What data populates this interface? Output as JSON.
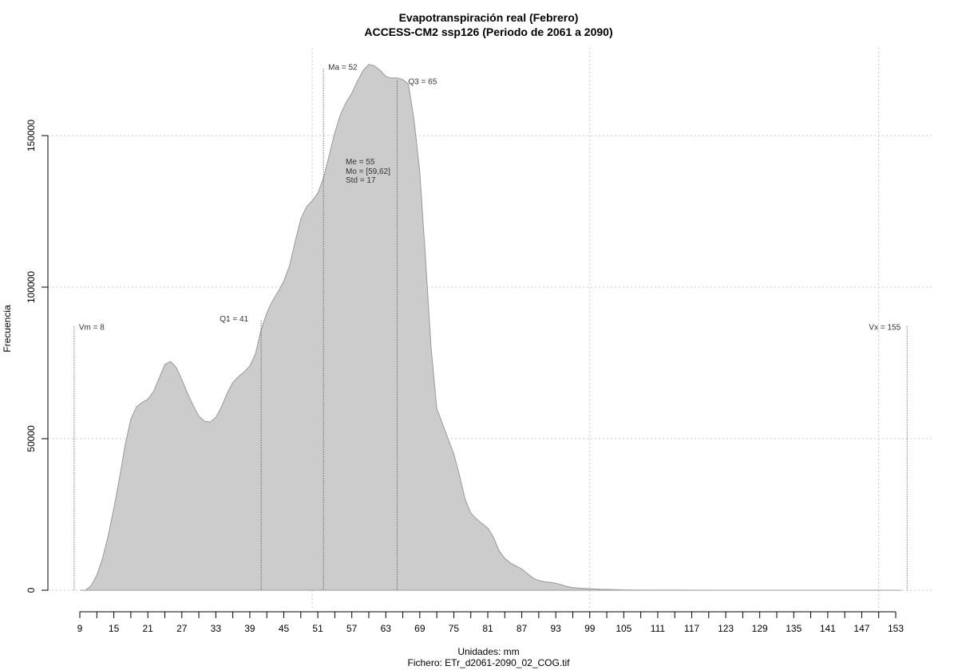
{
  "chart_data": {
    "type": "area",
    "title": "Evapotranspiración real (Febrero)",
    "subtitle": "ACCESS-CM2 ssp126 (Periodo de 2061 a 2090)",
    "xlabel": "Unidades: mm",
    "file_label": "Fichero: ETr_d2061-2090_02_COG.tif",
    "ylabel": "Frecuencia",
    "xlim": [
      9,
      155
    ],
    "ylim": [
      0,
      175000
    ],
    "x_ticks": [
      9,
      15,
      21,
      27,
      33,
      39,
      45,
      51,
      57,
      63,
      69,
      75,
      81,
      87,
      93,
      99,
      105,
      111,
      117,
      123,
      129,
      135,
      141,
      147,
      153
    ],
    "y_ticks": [
      0,
      50000,
      100000,
      150000
    ],
    "y_tick_labels": [
      "0",
      "50000",
      "100000",
      "150000"
    ],
    "grid": true,
    "grid_x": [
      50,
      99,
      150
    ],
    "fill_color": "#cccccc",
    "line_color": "#999999",
    "x": [
      9,
      10,
      11,
      12,
      13,
      14,
      15,
      16,
      17,
      18,
      19,
      20,
      21,
      22,
      23,
      24,
      25,
      26,
      27,
      28,
      29,
      30,
      31,
      32,
      33,
      34,
      35,
      36,
      37,
      38,
      39,
      40,
      41,
      42,
      43,
      44,
      45,
      46,
      47,
      48,
      49,
      50,
      51,
      52,
      53,
      54,
      55,
      56,
      57,
      58,
      59,
      60,
      61,
      62,
      63,
      64,
      65,
      66,
      67,
      68,
      69,
      70,
      71,
      72,
      73,
      74,
      75,
      76,
      77,
      78,
      79,
      80,
      81,
      82,
      83,
      84,
      85,
      86,
      87,
      88,
      89,
      90,
      91,
      92,
      93,
      94,
      95,
      96,
      97,
      98,
      99,
      100,
      101,
      102,
      103,
      104,
      105,
      107,
      110,
      115,
      120,
      125,
      130,
      135,
      140,
      145,
      150,
      154
    ],
    "values": [
      0,
      0,
      1500,
      5000,
      10500,
      18000,
      27000,
      37000,
      48000,
      56500,
      60500,
      62000,
      63000,
      65500,
      70000,
      74500,
      75500,
      73500,
      69500,
      65000,
      61000,
      57500,
      55800,
      55500,
      57000,
      60500,
      65000,
      68500,
      70500,
      72000,
      74000,
      78000,
      86000,
      91500,
      95500,
      98500,
      102000,
      107000,
      115000,
      122500,
      126500,
      128500,
      131000,
      136000,
      143500,
      151000,
      157000,
      161000,
      164000,
      168000,
      171500,
      173500,
      173000,
      171500,
      169500,
      169000,
      169000,
      168500,
      167000,
      155000,
      138000,
      110000,
      80000,
      60000,
      55000,
      50000,
      45000,
      38000,
      30000,
      25500,
      23500,
      22000,
      20500,
      17500,
      13000,
      10500,
      9000,
      8000,
      7000,
      5500,
      4000,
      3200,
      2800,
      2600,
      2300,
      1800,
      1200,
      900,
      700,
      600,
      500,
      400,
      300,
      250,
      200,
      150,
      100,
      60,
      30,
      15,
      8,
      5,
      3,
      2,
      1,
      0,
      0,
      0
    ],
    "stats": {
      "vm": {
        "value": 8,
        "label": "Vm = 8",
        "height": 87000
      },
      "q1": {
        "value": 41,
        "label": "Q1 = 41",
        "height": 89000
      },
      "ma": {
        "value": 52,
        "label": "Ma = 52",
        "height": 172000
      },
      "q3": {
        "value": 65,
        "label": "Q3 = 65",
        "height": 168000
      },
      "vx": {
        "value": 155,
        "label": "Vx = 155",
        "height": 87000
      }
    },
    "stats_text": [
      "Me = 55",
      "Mo = [59,62]",
      "Std = 17"
    ]
  }
}
